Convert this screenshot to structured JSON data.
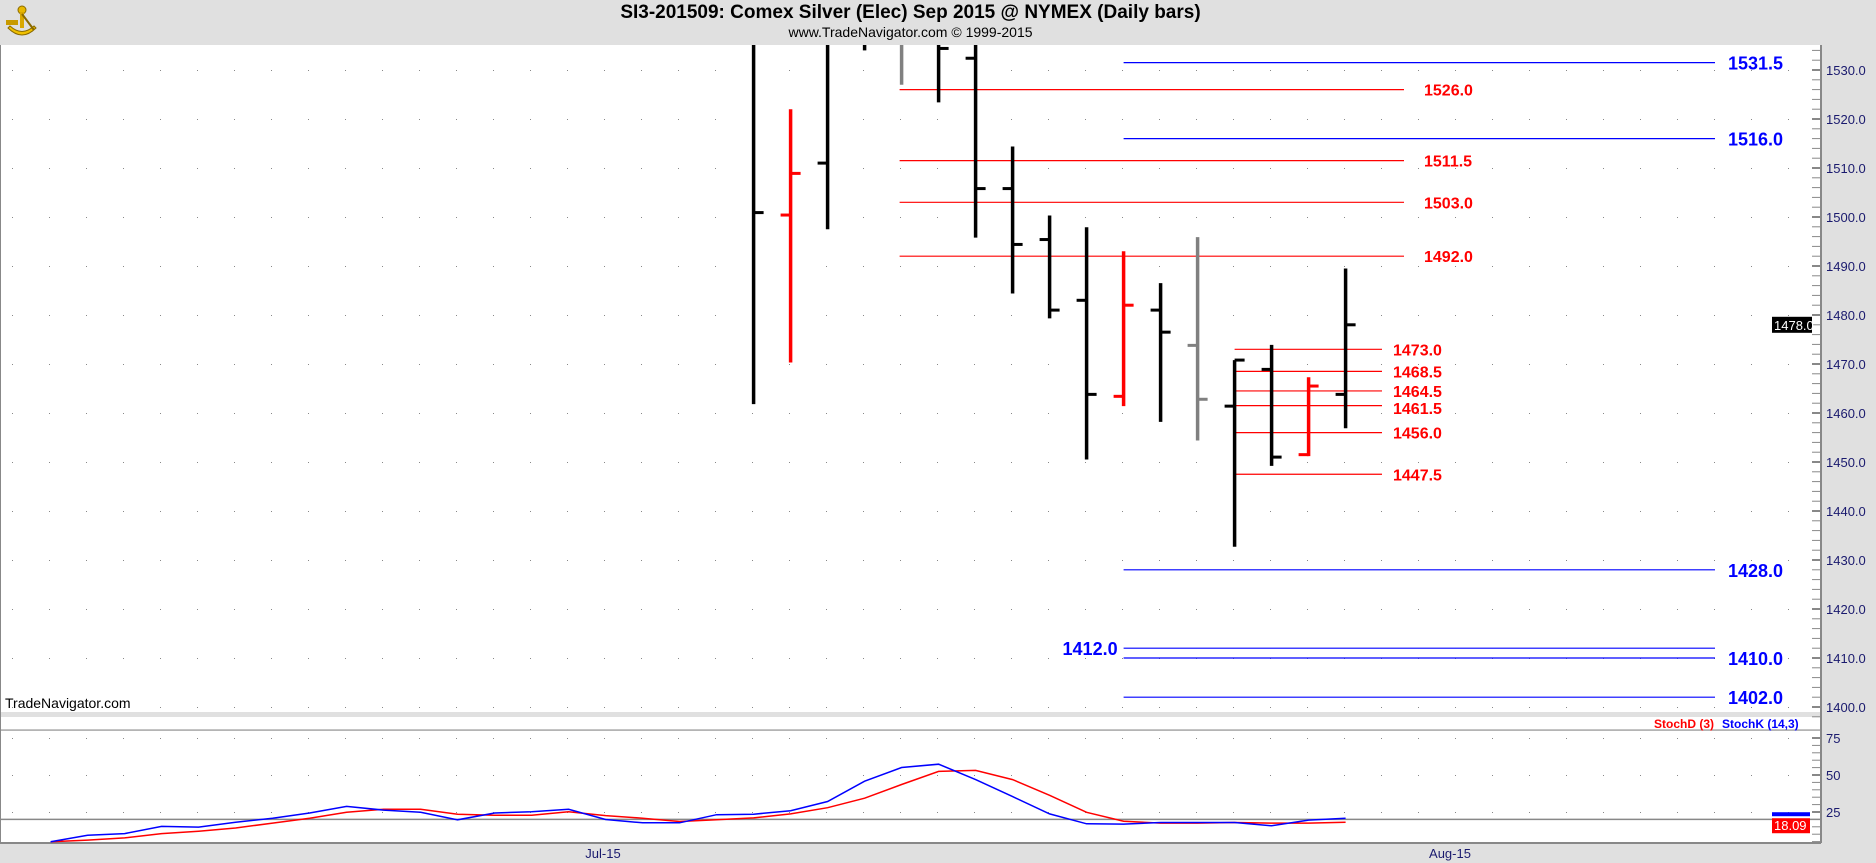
{
  "header": {
    "title": "SI3-201509:  Comex Silver (Elec) Sep 2015 @ NYMEX  (Daily bars)",
    "subtitle": "www.TradeNavigator.com © 1999-2015",
    "logo_icon": "sextant-logo-icon"
  },
  "watermark": "TradeNavigator.com",
  "colors": {
    "up": "#000000",
    "down": "#ff0000",
    "neutral": "#808080",
    "level_red": "#ff0000",
    "level_blue": "#0000ff",
    "stoch_k": "#0000ff",
    "stoch_d": "#ff0000"
  },
  "chart_data": [
    {
      "type": "ohlc",
      "ylim": [
        1398,
        1535
      ],
      "y_ticks": [
        "1530.0",
        "1520.0",
        "1510.0",
        "1500.0",
        "1490.0",
        "1480.0",
        "1470.0",
        "1460.0",
        "1450.0",
        "1440.0",
        "1430.0",
        "1420.0",
        "1410.0",
        "1400.0"
      ],
      "x_ticks": [
        "Jul-15",
        "Aug-15"
      ],
      "last_price": "1478.0",
      "grid": "dotted",
      "bars": [
        {
          "o": 1540,
          "h": 1545,
          "l": 1461.8,
          "c": 1500.9,
          "color": "up"
        },
        {
          "o": 1500.4,
          "h": 1522,
          "l": 1470.3,
          "c": 1508.9,
          "color": "down"
        },
        {
          "o": 1511,
          "h": 1545,
          "l": 1497.5,
          "c": 1540,
          "color": "up"
        },
        {
          "o": 1540,
          "h": 1545,
          "l": 1534,
          "c": 1538,
          "color": "up"
        },
        {
          "o": 1540,
          "h": 1545,
          "l": 1527,
          "c": 1538,
          "color": "neutral"
        },
        {
          "o": 1540,
          "h": 1545,
          "l": 1523.4,
          "c": 1534.4,
          "color": "up"
        },
        {
          "o": 1532.4,
          "h": 1545,
          "l": 1495.8,
          "c": 1505.8,
          "color": "up"
        },
        {
          "o": 1505.8,
          "h": 1514.4,
          "l": 1484.4,
          "c": 1494.4,
          "color": "up"
        },
        {
          "o": 1495.4,
          "h": 1500.3,
          "l": 1479.3,
          "c": 1481,
          "color": "up"
        },
        {
          "o": 1483,
          "h": 1497.9,
          "l": 1450.5,
          "c": 1463.8,
          "color": "up"
        },
        {
          "o": 1463.4,
          "h": 1493,
          "l": 1461.4,
          "c": 1482,
          "color": "down"
        },
        {
          "o": 1481,
          "h": 1486.5,
          "l": 1458.2,
          "c": 1476.5,
          "color": "up"
        },
        {
          "o": 1473.8,
          "h": 1495.9,
          "l": 1454.4,
          "c": 1462.8,
          "color": "neutral"
        },
        {
          "o": 1461.4,
          "h": 1470.8,
          "l": 1432.7,
          "c": 1470.8,
          "color": "up"
        },
        {
          "o": 1468.9,
          "h": 1473.9,
          "l": 1449.2,
          "c": 1451,
          "color": "up"
        },
        {
          "o": 1451.5,
          "h": 1467.3,
          "l": 1451.2,
          "c": 1465.5,
          "color": "down"
        },
        {
          "o": 1463.8,
          "h": 1489.5,
          "l": 1456.9,
          "c": 1478,
          "color": "up"
        }
      ],
      "levels": {
        "red_upper": [
          "1526.0",
          "1511.5",
          "1503.0",
          "1492.0"
        ],
        "red_lower": [
          "1473.0",
          "1468.5",
          "1464.5",
          "1461.5",
          "1456.0",
          "1447.5"
        ],
        "blue": [
          "1531.5",
          "1516.0",
          "1428.0",
          "1410.0",
          "1402.0"
        ],
        "blue_left_label": [
          "1412.0"
        ]
      }
    },
    {
      "type": "line",
      "ylim": [
        0,
        80
      ],
      "y_ticks": [
        "75",
        "50",
        "25"
      ],
      "reference_line": 20,
      "legend": [
        "StochD (3)",
        "StochK (14,3)"
      ],
      "last_value": "18.09",
      "series": [
        {
          "name": "StochK (14,3)",
          "values": [
            4.9,
            9.3,
            10.4,
            15.3,
            14.8,
            18.1,
            20.8,
            24.3,
            28.8,
            26.3,
            24.8,
            19.7,
            24.3,
            25.2,
            26.8,
            19.9,
            17.7,
            17.7,
            23.2,
            23.5,
            25.9,
            32.1,
            45.8,
            55.1,
            57.3,
            46.9,
            35.4,
            23.7,
            17.0,
            16.8,
            17.9,
            17.9,
            17.9,
            15.7,
            19.5,
            20.8
          ]
        },
        {
          "name": "StochD (3)",
          "values": [
            4.9,
            6.0,
            7.5,
            10.4,
            12.0,
            14.2,
            17.5,
            20.8,
            24.8,
            26.8,
            26.8,
            23.5,
            22.8,
            22.8,
            25.2,
            22.6,
            20.8,
            18.6,
            19.7,
            21.0,
            23.7,
            27.9,
            34.3,
            43.6,
            52.4,
            53.1,
            46.9,
            36.3,
            24.8,
            18.8,
            17.5,
            17.5,
            17.9,
            17.5,
            17.5,
            18.09
          ]
        }
      ]
    }
  ]
}
